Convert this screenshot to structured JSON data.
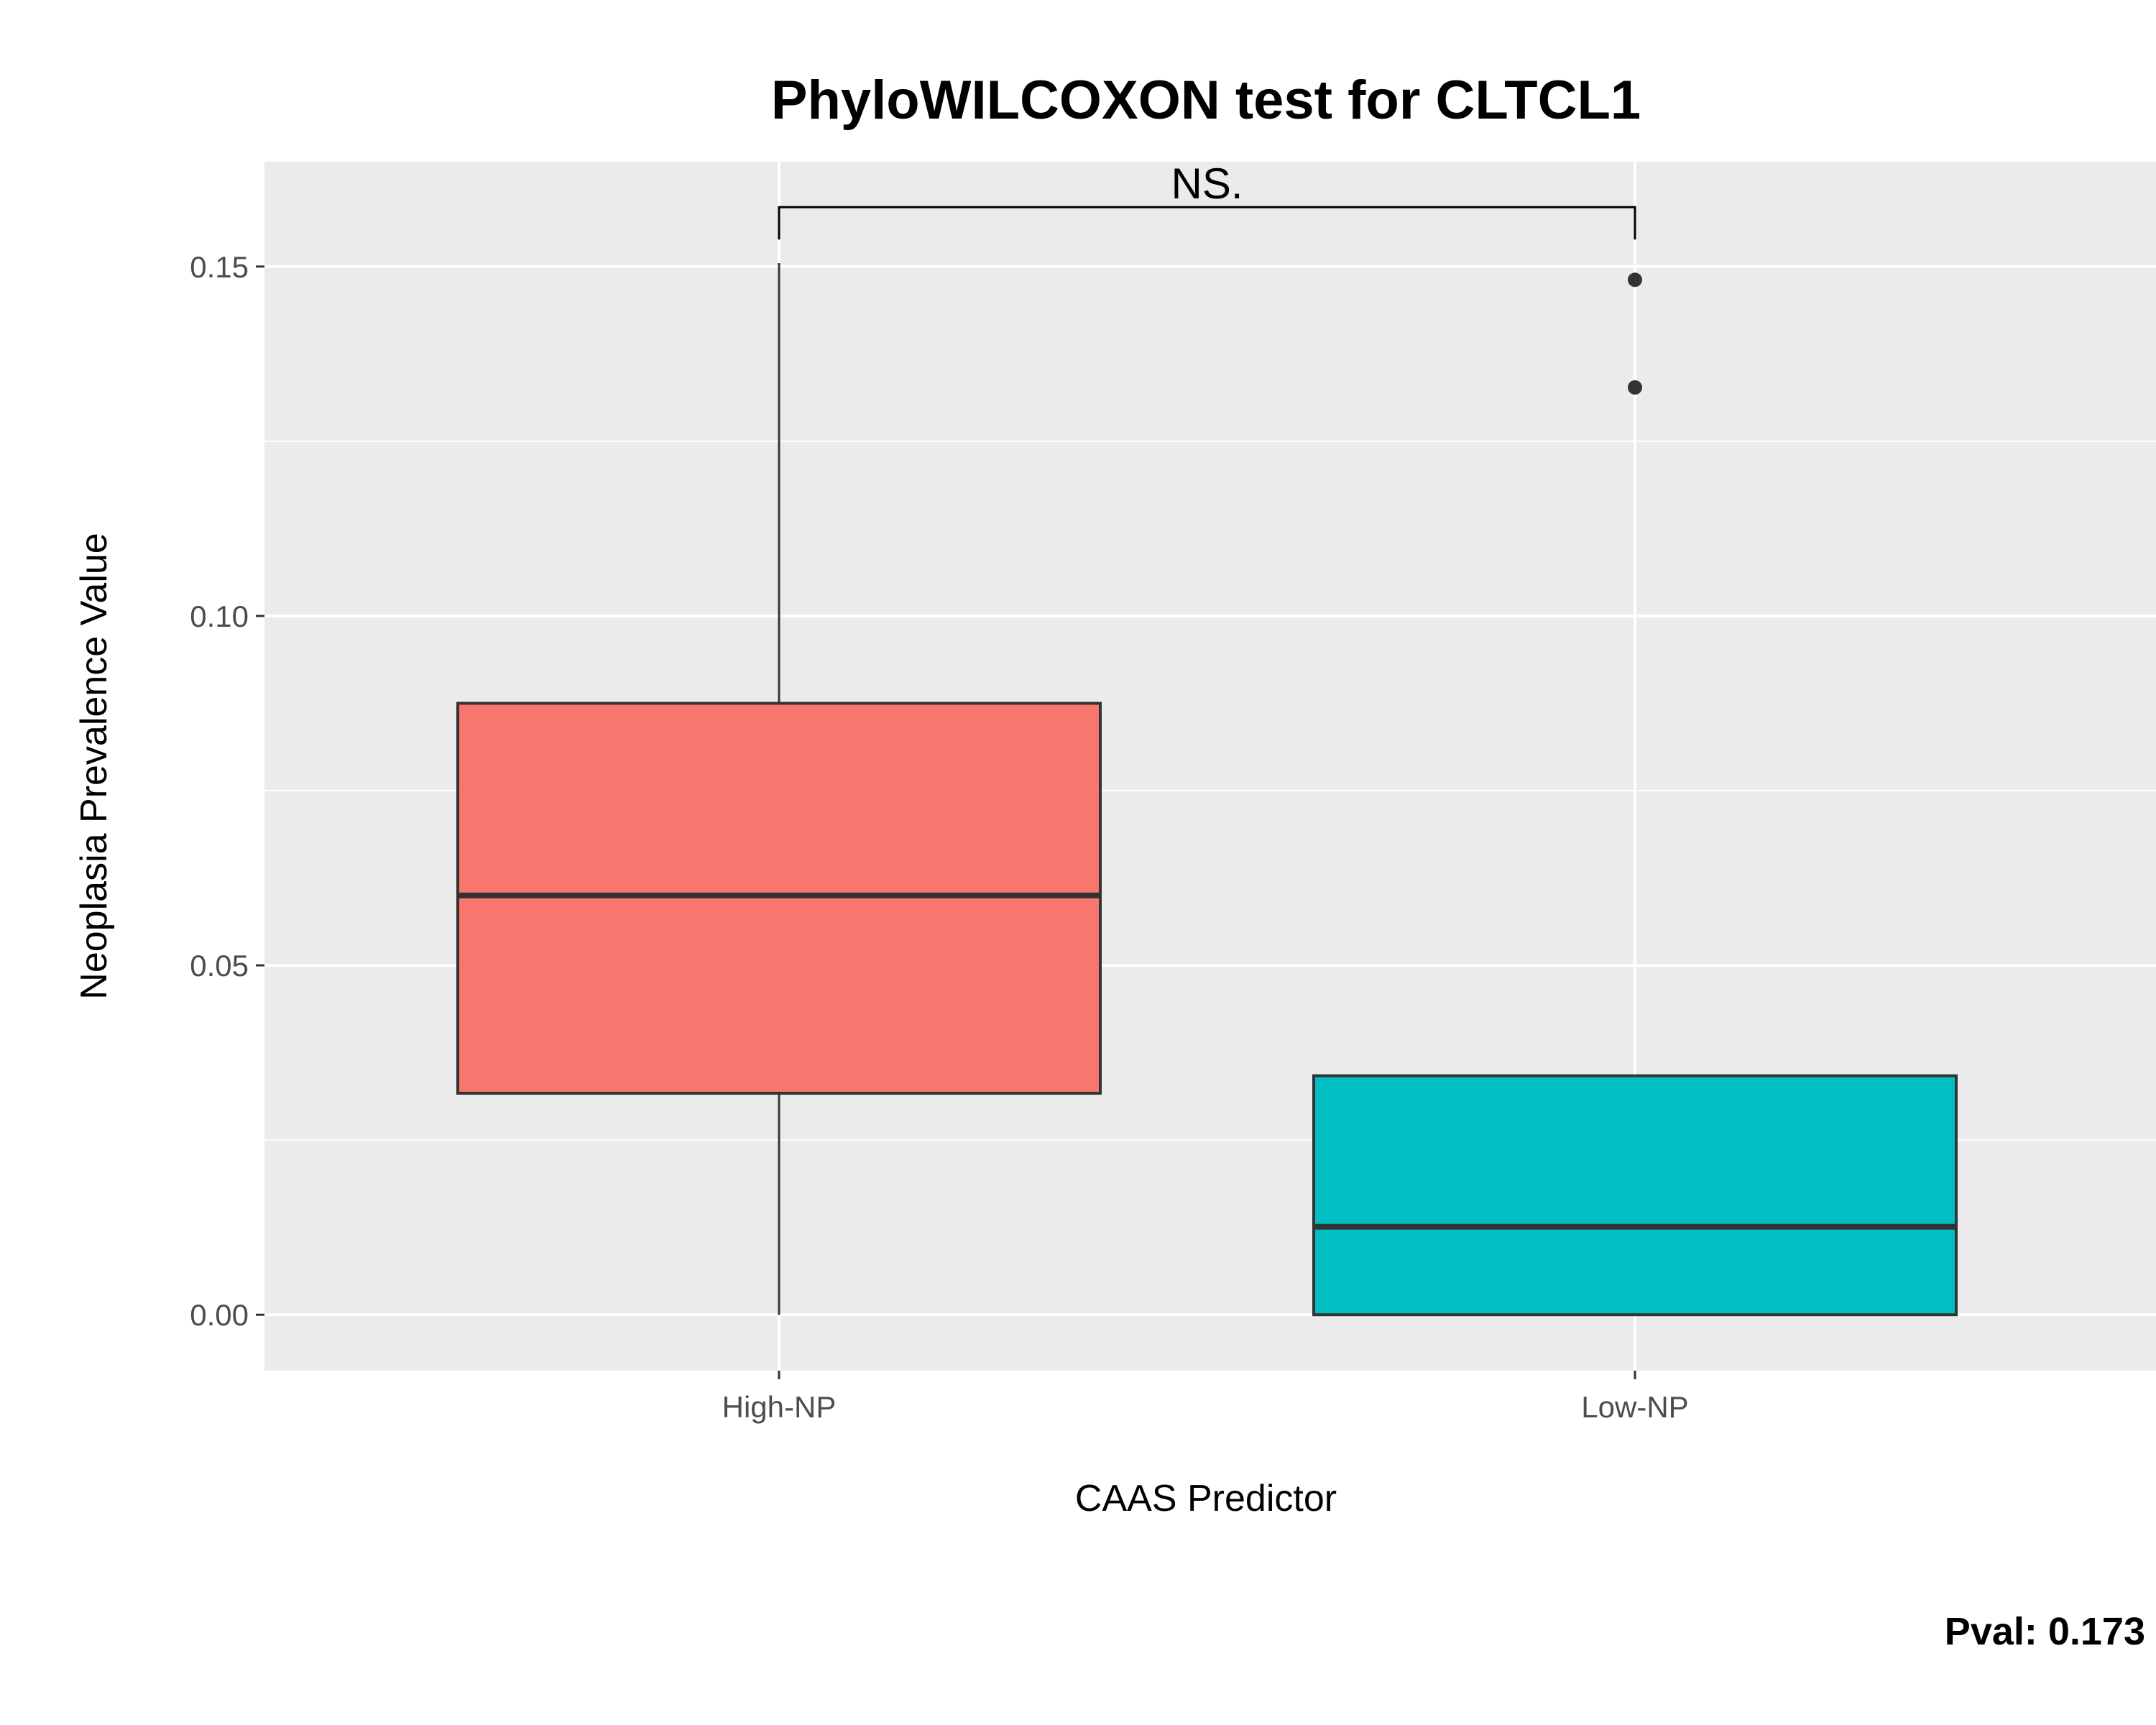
{
  "chart_data": {
    "type": "box",
    "title": "PhyloWILCOXON test for CLTCL1",
    "xlabel": "CAAS Predictor",
    "ylabel": "Neoplasia Prevalence Value",
    "ylim": [
      -0.008,
      0.165
    ],
    "yticks": [
      0.0,
      0.05,
      0.1,
      0.15
    ],
    "ytick_labels": [
      "0.00",
      "0.05",
      "0.10",
      "0.15"
    ],
    "grid": true,
    "legend": "none",
    "categories": [
      "High-NP",
      "Low-NP"
    ],
    "boxes": [
      {
        "category": "High-NP",
        "color": "#F8766D",
        "whisker_low": 0.0,
        "q1": 0.0317,
        "median": 0.06,
        "q3": 0.0875,
        "whisker_high": 0.1505,
        "outliers": []
      },
      {
        "category": "Low-NP",
        "color": "#00BFC4",
        "whisker_low": 0.0,
        "q1": 0.0,
        "median": 0.0126,
        "q3": 0.0342,
        "whisker_high": 0.0342,
        "outliers": [
          0.1327,
          0.1481
        ]
      }
    ],
    "annotation": {
      "text": "NS.",
      "from": "High-NP",
      "to": "Low-NP",
      "y": 0.1585
    },
    "caption": "Pval:  0.173"
  }
}
